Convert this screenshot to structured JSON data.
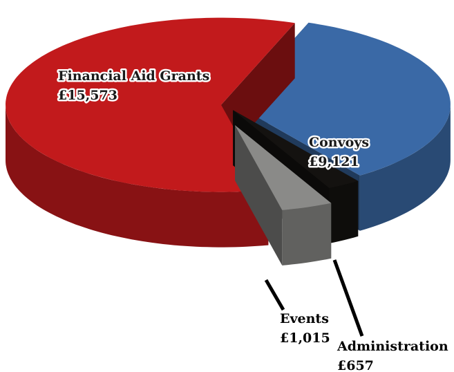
{
  "chart_data": {
    "type": "pie",
    "categories": [
      "Convoys",
      "Administration",
      "Events",
      "Financial Aid Grants"
    ],
    "values": [
      9121,
      657,
      1015,
      15573
    ],
    "value_labels": [
      "£9,121",
      "£657",
      "£1,015",
      "£15,573"
    ],
    "colors": [
      "#3a69a6",
      "#141210",
      "#8a8a88",
      "#c21a1c"
    ]
  }
}
